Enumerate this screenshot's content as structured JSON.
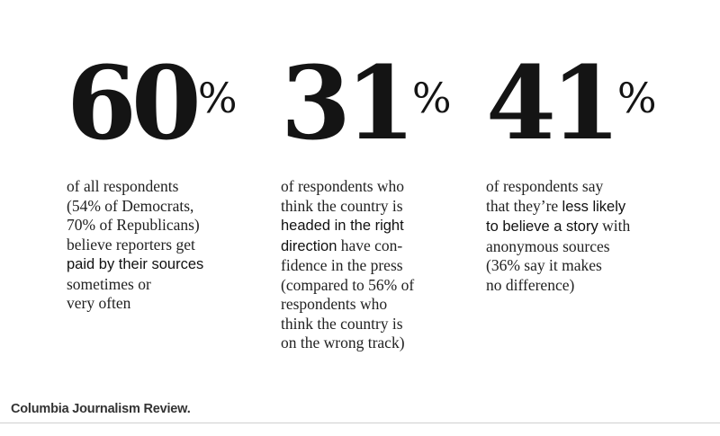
{
  "stats": [
    {
      "number": "60",
      "percent_sign": "%",
      "lines": [
        [
          {
            "t": "of all respondents"
          }
        ],
        [
          {
            "t": "(54% of Democrats,"
          }
        ],
        [
          {
            "t": "70% of Republicans)"
          }
        ],
        [
          {
            "t": "believe reporters get"
          }
        ],
        [
          {
            "t": "paid by their sources",
            "em": true
          }
        ],
        [
          {
            "t": "sometimes or"
          }
        ],
        [
          {
            "t": "very often"
          }
        ]
      ]
    },
    {
      "number": "31",
      "percent_sign": "%",
      "lines": [
        [
          {
            "t": "of respondents who"
          }
        ],
        [
          {
            "t": "think the country is"
          }
        ],
        [
          {
            "t": "headed in the right",
            "em": true
          }
        ],
        [
          {
            "t": "direction",
            "em": true
          },
          {
            "t": " have con-"
          }
        ],
        [
          {
            "t": "fidence in the press"
          }
        ],
        [
          {
            "t": "(compared to 56% of"
          }
        ],
        [
          {
            "t": "respondents who"
          }
        ],
        [
          {
            "t": "think the country is"
          }
        ],
        [
          {
            "t": "on the wrong track)"
          }
        ]
      ]
    },
    {
      "number": "41",
      "percent_sign": "%",
      "lines": [
        [
          {
            "t": "of respondents say"
          }
        ],
        [
          {
            "t": "that they’re "
          },
          {
            "t": "less likely",
            "em": true
          }
        ],
        [
          {
            "t": "to believe a story",
            "em": true
          },
          {
            "t": " with"
          }
        ],
        [
          {
            "t": "anonymous sources"
          }
        ],
        [
          {
            "t": "(36% say it makes"
          }
        ],
        [
          {
            "t": "no difference)"
          }
        ]
      ]
    }
  ],
  "footer": {
    "brand": "Columbia Journalism Review."
  }
}
